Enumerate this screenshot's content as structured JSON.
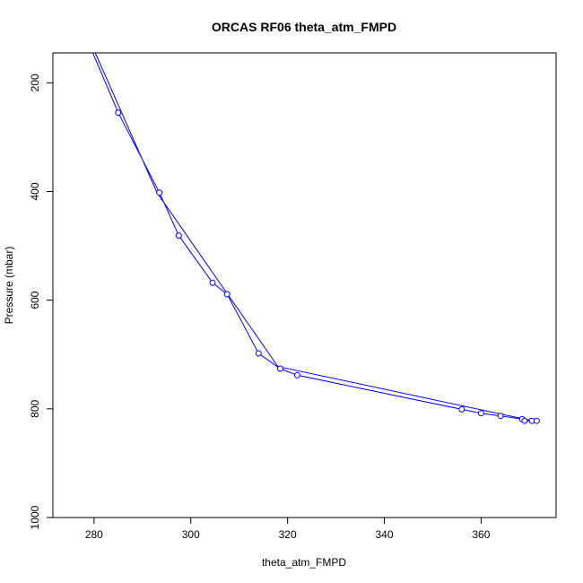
{
  "chart_data": {
    "type": "line",
    "title": "ORCAS RF06 theta_atm_FMPD",
    "xlabel": "theta_atm_FMPD",
    "ylabel": "Pressure (mbar)",
    "xlim": [
      271.5,
      375.5
    ],
    "ylim": [
      1000,
      145
    ],
    "y_reversed": true,
    "x_ticks": [
      280,
      300,
      320,
      340,
      360
    ],
    "y_ticks": [
      200,
      400,
      600,
      800,
      1000
    ],
    "series_color": "#0000ff",
    "line": [
      {
        "x": 279.5,
        "y": 140
      },
      {
        "x": 285,
        "y": 255
      },
      {
        "x": 293.5,
        "y": 402
      },
      {
        "x": 297.5,
        "y": 481
      },
      {
        "x": 304.5,
        "y": 568
      },
      {
        "x": 307.5,
        "y": 589
      },
      {
        "x": 314,
        "y": 698
      },
      {
        "x": 318.5,
        "y": 726
      },
      {
        "x": 322,
        "y": 738
      },
      {
        "x": 356,
        "y": 801
      },
      {
        "x": 360,
        "y": 808
      },
      {
        "x": 364,
        "y": 813
      },
      {
        "x": 368.5,
        "y": 819
      },
      {
        "x": 369,
        "y": 822
      },
      {
        "x": 370.5,
        "y": 822
      },
      {
        "x": 371.5,
        "y": 822
      },
      {
        "x": 369,
        "y": 819
      },
      {
        "x": 318,
        "y": 722
      },
      {
        "x": 293,
        "y": 402
      },
      {
        "x": 280,
        "y": 140
      }
    ],
    "points": [
      {
        "x": 285,
        "y": 255
      },
      {
        "x": 293.5,
        "y": 402
      },
      {
        "x": 297.5,
        "y": 481
      },
      {
        "x": 304.5,
        "y": 568
      },
      {
        "x": 307.5,
        "y": 589
      },
      {
        "x": 314,
        "y": 698
      },
      {
        "x": 318.5,
        "y": 726
      },
      {
        "x": 322,
        "y": 738
      },
      {
        "x": 356,
        "y": 801
      },
      {
        "x": 360,
        "y": 808
      },
      {
        "x": 364,
        "y": 813
      },
      {
        "x": 368.5,
        "y": 819
      },
      {
        "x": 369,
        "y": 822
      },
      {
        "x": 370.5,
        "y": 822
      },
      {
        "x": 371.5,
        "y": 822
      }
    ]
  }
}
